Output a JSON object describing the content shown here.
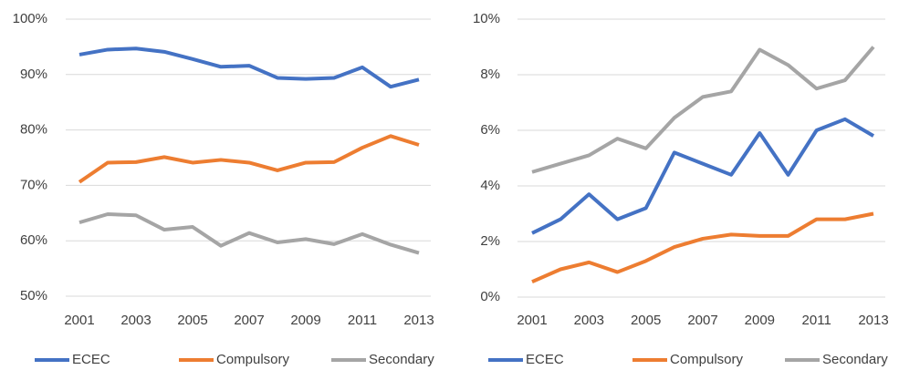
{
  "chart_data": [
    {
      "type": "line",
      "x": [
        2001,
        2002,
        2003,
        2004,
        2005,
        2006,
        2007,
        2008,
        2009,
        2010,
        2011,
        2012,
        2013
      ],
      "xlim": [
        2001,
        2013
      ],
      "xticks": [
        2001,
        2003,
        2005,
        2007,
        2009,
        2011,
        2013
      ],
      "ylim": [
        50,
        100
      ],
      "yticks": [
        {
          "value": 50,
          "label": "50%"
        },
        {
          "value": 60,
          "label": "60%"
        },
        {
          "value": 70,
          "label": "70%"
        },
        {
          "value": 80,
          "label": "80%"
        },
        {
          "value": 90,
          "label": "90%"
        },
        {
          "value": 100,
          "label": "100%"
        }
      ],
      "grid": true,
      "legend": "bottom",
      "series": [
        {
          "name": "ECEC",
          "color": "#4472c4",
          "values": [
            93.6,
            94.5,
            94.7,
            94.1,
            92.8,
            91.4,
            91.6,
            89.4,
            89.2,
            89.4,
            91.3,
            87.8,
            89.1
          ]
        },
        {
          "name": "Compulsory",
          "color": "#ed7d31",
          "values": [
            70.6,
            74.1,
            74.2,
            75.1,
            74.1,
            74.6,
            74.1,
            72.7,
            74.1,
            74.2,
            76.8,
            78.9,
            77.3
          ]
        },
        {
          "name": "Secondary",
          "color": "#a5a5a5",
          "values": [
            63.3,
            64.8,
            64.6,
            62.0,
            62.5,
            59.1,
            61.4,
            59.7,
            60.3,
            59.4,
            61.2,
            59.3,
            57.8
          ]
        }
      ]
    },
    {
      "type": "line",
      "x": [
        2001,
        2002,
        2003,
        2004,
        2005,
        2006,
        2007,
        2008,
        2009,
        2010,
        2011,
        2012,
        2013
      ],
      "xlim": [
        2001,
        2013
      ],
      "xticks": [
        2001,
        2003,
        2005,
        2007,
        2009,
        2011,
        2013
      ],
      "ylim": [
        0,
        10
      ],
      "yticks": [
        {
          "value": 0,
          "label": "0%"
        },
        {
          "value": 2,
          "label": "2%"
        },
        {
          "value": 4,
          "label": "4%"
        },
        {
          "value": 6,
          "label": "6%"
        },
        {
          "value": 8,
          "label": "8%"
        },
        {
          "value": 10,
          "label": "10%"
        }
      ],
      "grid": true,
      "legend": "bottom",
      "series": [
        {
          "name": "ECEC",
          "color": "#4472c4",
          "values": [
            2.3,
            2.8,
            3.7,
            2.8,
            3.2,
            5.2,
            4.8,
            4.4,
            5.9,
            4.4,
            6.0,
            6.4,
            5.8
          ]
        },
        {
          "name": "Compulsory",
          "color": "#ed7d31",
          "values": [
            0.55,
            1.0,
            1.25,
            0.9,
            1.3,
            1.8,
            2.1,
            2.25,
            2.2,
            2.2,
            2.8,
            2.8,
            3.0
          ]
        },
        {
          "name": "Secondary",
          "color": "#a5a5a5",
          "values": [
            4.5,
            4.8,
            5.1,
            5.7,
            5.35,
            6.45,
            7.2,
            7.4,
            8.9,
            8.35,
            7.5,
            7.8,
            9.0
          ]
        }
      ]
    }
  ]
}
